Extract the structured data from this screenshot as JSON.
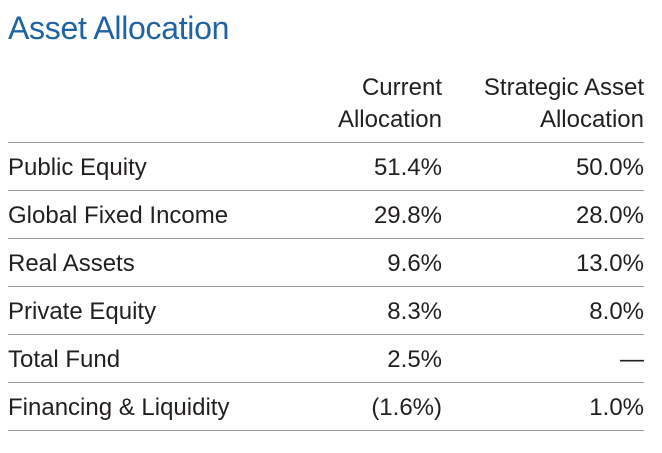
{
  "title": "Asset Allocation",
  "columns": {
    "current": [
      "Current",
      "Allocation"
    ],
    "strategic": [
      "Strategic Asset",
      "Allocation"
    ]
  },
  "rows": [
    {
      "label": "Public Equity",
      "current": "51.4%",
      "strategic": "50.0%"
    },
    {
      "label": "Global Fixed Income",
      "current": "29.8%",
      "strategic": "28.0%"
    },
    {
      "label": "Real Assets",
      "current": "9.6%",
      "strategic": "13.0%"
    },
    {
      "label": "Private Equity",
      "current": "8.3%",
      "strategic": "8.0%"
    },
    {
      "label": "Total Fund",
      "current": "2.5%",
      "strategic": "—"
    },
    {
      "label": "Financing & Liquidity",
      "current": "(1.6%)",
      "strategic": "1.0%"
    }
  ],
  "colors": {
    "title": "#1f63a3",
    "text": "#231f20",
    "rule": "#9a9a9a"
  }
}
